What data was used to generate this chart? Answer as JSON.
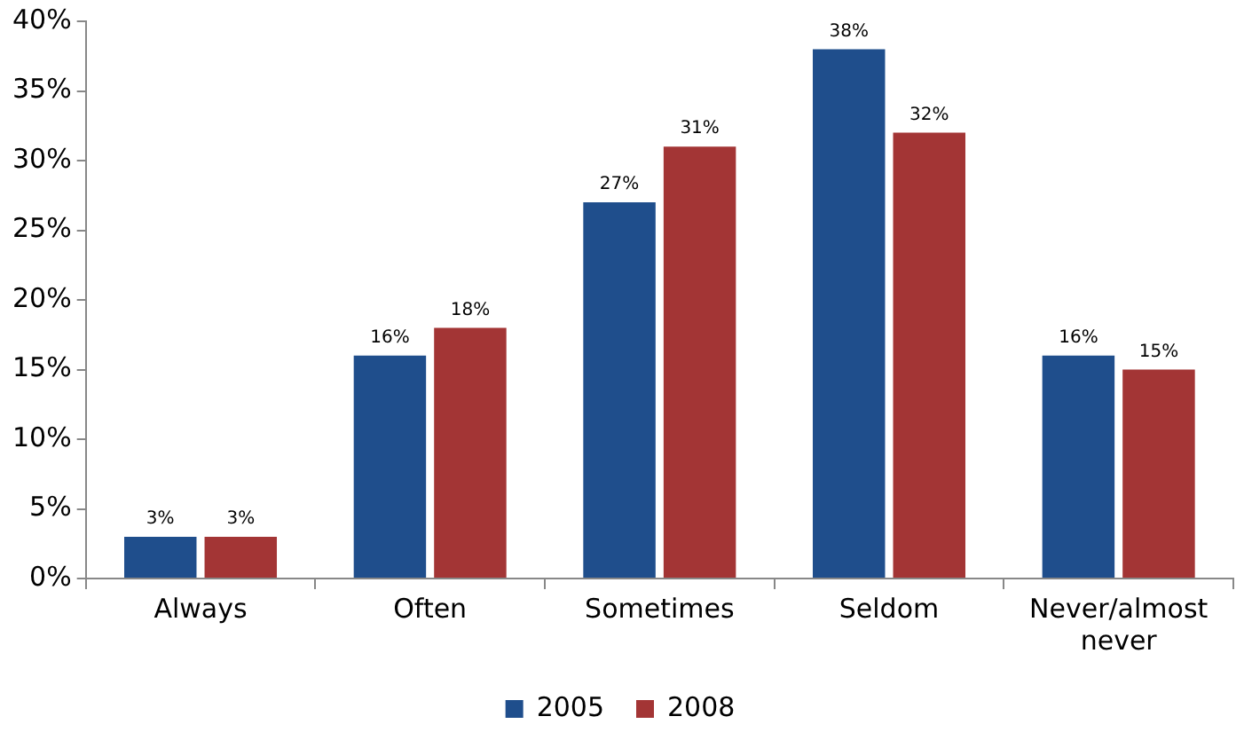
{
  "chart_data": {
    "type": "bar",
    "categories": [
      "Always",
      "Often",
      "Sometimes",
      "Seldom",
      "Never/almost never"
    ],
    "series": [
      {
        "name": "2005",
        "color": "#1f4e8c",
        "values": [
          3,
          16,
          27,
          38,
          16
        ],
        "value_labels": [
          "3%",
          "16%",
          "27%",
          "38%",
          "16%"
        ]
      },
      {
        "name": "2008",
        "color": "#a33535",
        "values": [
          3,
          18,
          31,
          32,
          15
        ],
        "value_labels": [
          "3%",
          "18%",
          "31%",
          "32%",
          "15%"
        ]
      }
    ],
    "ylim": [
      0,
      40
    ],
    "yticks": [
      {
        "value": 0,
        "label": "0%"
      },
      {
        "value": 5,
        "label": "5%"
      },
      {
        "value": 10,
        "label": "10%"
      },
      {
        "value": 15,
        "label": "15%"
      },
      {
        "value": 20,
        "label": "20%"
      },
      {
        "value": 25,
        "label": "25%"
      },
      {
        "value": 30,
        "label": "30%"
      },
      {
        "value": 35,
        "label": "35%"
      },
      {
        "value": 40,
        "label": "40%"
      }
    ],
    "grid": false,
    "legend": "bottom"
  }
}
